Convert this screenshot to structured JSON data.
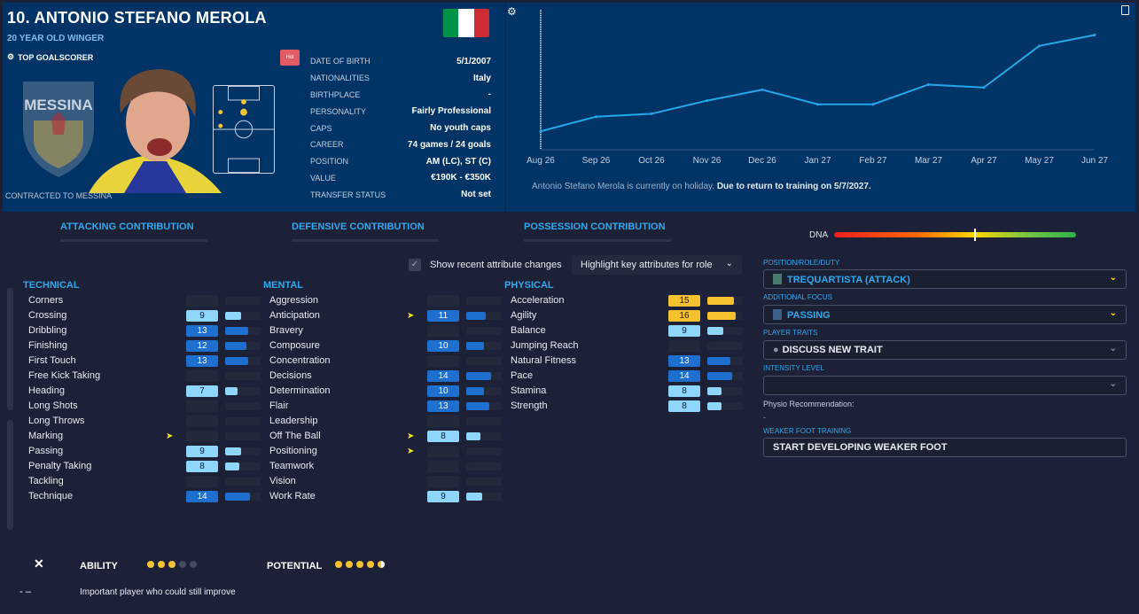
{
  "header": {
    "player_name": "10. ANTONIO STEFANO MEROLA",
    "subtitle": "20 YEAR OLD WINGER",
    "top_goalscorer": "TOP GOALSCORER",
    "contracted": "CONTRACTED TO MESSINA",
    "holiday_badge": "Hol",
    "club_crest_text": "MESSINA",
    "flag_colors": [
      "#009246",
      "#ffffff",
      "#ce2b37"
    ],
    "info": [
      {
        "key": "DATE OF BIRTH",
        "value": "5/1/2007"
      },
      {
        "key": "NATIONALITIES",
        "value": "Italy"
      },
      {
        "key": "BIRTHPLACE",
        "value": "-"
      },
      {
        "key": "PERSONALITY",
        "value": "Fairly Professional"
      },
      {
        "key": "CAPS",
        "value": "No youth caps"
      },
      {
        "key": "CAREER",
        "value": "74 games / 24 goals"
      },
      {
        "key": "POSITION",
        "value": "AM (LC), ST (C)"
      },
      {
        "key": "VALUE",
        "value": "€190K - €350K"
      },
      {
        "key": "TRANSFER STATUS",
        "value": "Not set"
      }
    ],
    "holiday_text": "Antonio Stefano Merola is currently on holiday.",
    "holiday_bold": "Due to return to training on 5/7/2027."
  },
  "chart_data": {
    "type": "line",
    "categories": [
      "Aug 26",
      "Sep 26",
      "Oct 26",
      "Nov 26",
      "Dec 26",
      "Jan 27",
      "Feb 27",
      "Mar 27",
      "Apr 27",
      "May 27",
      "Jun 27"
    ],
    "values": [
      18,
      38,
      42,
      60,
      75,
      55,
      55,
      82,
      78,
      135,
      150
    ],
    "ylim": [
      0,
      170
    ],
    "line_color": "#22a8ea",
    "grid": false
  },
  "contrib": {
    "attacking": "ATTACKING CONTRIBUTION",
    "defensive": "DEFENSIVE CONTRIBUTION",
    "possession": "POSSESSION CONTRIBUTION"
  },
  "dna_label": "DNA",
  "show_recent": "Show recent attribute changes",
  "highlight": "Highlight key attributes for role",
  "columns": {
    "technical": "TECHNICAL",
    "mental": "MENTAL",
    "physical": "PHYSICAL"
  },
  "technical": [
    {
      "name": "Corners",
      "value": "",
      "level": 0,
      "highlight": false,
      "flag": false
    },
    {
      "name": "Crossing",
      "value": "9",
      "level": 9,
      "highlight": true,
      "flag": false
    },
    {
      "name": "Dribbling",
      "value": "13",
      "level": 13,
      "highlight": true,
      "flag": false
    },
    {
      "name": "Finishing",
      "value": "12",
      "level": 12,
      "highlight": true,
      "flag": false
    },
    {
      "name": "First Touch",
      "value": "13",
      "level": 13,
      "highlight": true,
      "flag": false
    },
    {
      "name": "Free Kick Taking",
      "value": "",
      "level": 0,
      "highlight": false,
      "flag": false
    },
    {
      "name": "Heading",
      "value": "7",
      "level": 7,
      "highlight": true,
      "flag": false
    },
    {
      "name": "Long Shots",
      "value": "",
      "level": 0,
      "highlight": false,
      "flag": false
    },
    {
      "name": "Long Throws",
      "value": "",
      "level": 0,
      "highlight": false,
      "flag": false
    },
    {
      "name": "Marking",
      "value": "",
      "level": 0,
      "highlight": false,
      "flag": true
    },
    {
      "name": "Passing",
      "value": "9",
      "level": 9,
      "highlight": true,
      "flag": false
    },
    {
      "name": "Penalty Taking",
      "value": "8",
      "level": 8,
      "highlight": true,
      "flag": false
    },
    {
      "name": "Tackling",
      "value": "",
      "level": 0,
      "highlight": false,
      "flag": false
    },
    {
      "name": "Technique",
      "value": "14",
      "level": 14,
      "highlight": true,
      "flag": false
    }
  ],
  "mental": [
    {
      "name": "Aggression",
      "value": "",
      "level": 0,
      "highlight": false,
      "flag": false
    },
    {
      "name": "Anticipation",
      "value": "11",
      "level": 11,
      "highlight": true,
      "flag": true
    },
    {
      "name": "Bravery",
      "value": "",
      "level": 0,
      "highlight": false,
      "flag": false
    },
    {
      "name": "Composure",
      "value": "10",
      "level": 10,
      "highlight": true,
      "flag": false
    },
    {
      "name": "Concentration",
      "value": "",
      "level": 0,
      "highlight": false,
      "flag": false
    },
    {
      "name": "Decisions",
      "value": "14",
      "level": 14,
      "highlight": true,
      "flag": false
    },
    {
      "name": "Determination",
      "value": "10",
      "level": 10,
      "highlight": true,
      "flag": false
    },
    {
      "name": "Flair",
      "value": "13",
      "level": 13,
      "highlight": true,
      "flag": false
    },
    {
      "name": "Leadership",
      "value": "",
      "level": 0,
      "highlight": false,
      "flag": false
    },
    {
      "name": "Off The Ball",
      "value": "8",
      "level": 8,
      "highlight": true,
      "flag": true
    },
    {
      "name": "Positioning",
      "value": "",
      "level": 0,
      "highlight": false,
      "flag": true
    },
    {
      "name": "Teamwork",
      "value": "",
      "level": 0,
      "highlight": false,
      "flag": false
    },
    {
      "name": "Vision",
      "value": "",
      "level": 0,
      "highlight": false,
      "flag": false
    },
    {
      "name": "Work Rate",
      "value": "9",
      "level": 9,
      "highlight": true,
      "flag": false
    }
  ],
  "physical": [
    {
      "name": "Acceleration",
      "value": "15",
      "level": 15,
      "highlight": true,
      "flag": false
    },
    {
      "name": "Agility",
      "value": "16",
      "level": 16,
      "highlight": true,
      "flag": false
    },
    {
      "name": "Balance",
      "value": "9",
      "level": 9,
      "highlight": true,
      "flag": false
    },
    {
      "name": "Jumping Reach",
      "value": "",
      "level": 0,
      "highlight": false,
      "flag": false
    },
    {
      "name": "Natural Fitness",
      "value": "13",
      "level": 13,
      "highlight": true,
      "flag": false
    },
    {
      "name": "Pace",
      "value": "14",
      "level": 14,
      "highlight": true,
      "flag": false
    },
    {
      "name": "Stamina",
      "value": "8",
      "level": 8,
      "highlight": true,
      "flag": false
    },
    {
      "name": "Strength",
      "value": "8",
      "level": 8,
      "highlight": true,
      "flag": false
    }
  ],
  "role": {
    "label": "POSITION/ROLE/DUTY",
    "value": "TREQUARTISTA (ATTACK)",
    "focus_label": "ADDITIONAL FOCUS",
    "focus_value": "PASSING",
    "traits_label": "PLAYER TRAITS",
    "traits_value": "DISCUSS NEW TRAIT",
    "intensity_label": "INTENSITY LEVEL",
    "intensity_value": "",
    "physio": "Physio Recommendation:",
    "physio_value": "-",
    "weak_foot_label": "WEAKER FOOT TRAINING",
    "weak_foot_value": "START DEVELOPING WEAKER FOOT"
  },
  "footer": {
    "close": "✕",
    "ability": "ABILITY",
    "ability_stars": 3,
    "potential": "POTENTIAL",
    "potential_stars": 4.5,
    "marker": "- –",
    "note": "Important player who could still improve"
  }
}
